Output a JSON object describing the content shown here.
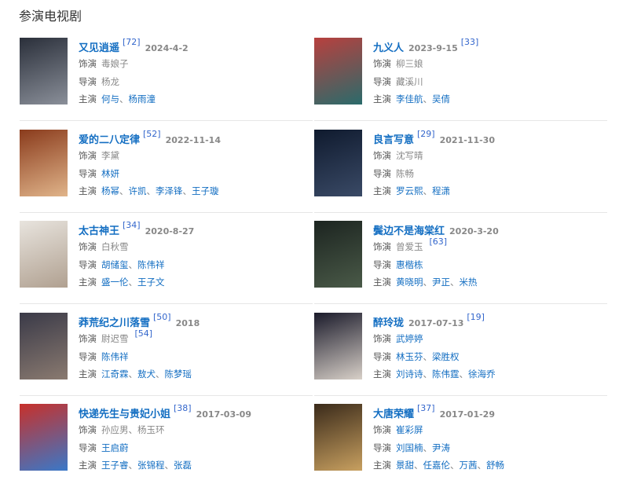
{
  "section_title": "参演电视剧",
  "labels": {
    "role": "饰演",
    "director": "导演",
    "starring": "主演"
  },
  "separator": "、",
  "colors": {
    "link": "#136ec2",
    "ref": "#3366cc",
    "date": "#888888"
  },
  "items": [
    {
      "title": "又见逍遥",
      "ref": "[72]",
      "date": "2024-4-2",
      "date_first": false,
      "role": [
        {
          "name": "毒娘子",
          "link": false
        }
      ],
      "role_ref": "",
      "director": [
        {
          "name": "杨龙",
          "link": false
        }
      ],
      "starring": [
        {
          "name": "何与",
          "link": true
        },
        {
          "name": "杨雨潼",
          "link": true
        }
      ],
      "poster": [
        "#2a2f3a",
        "#8a8f99"
      ]
    },
    {
      "title": "九义人",
      "ref": "[33]",
      "date": "2023-9-15",
      "date_first": true,
      "role": [
        {
          "name": "柳三娘",
          "link": false
        }
      ],
      "role_ref": "",
      "director": [
        {
          "name": "藏溪川",
          "link": false
        }
      ],
      "starring": [
        {
          "name": "李佳航",
          "link": true
        },
        {
          "name": "吴倩",
          "link": true
        }
      ],
      "poster": [
        "#b8403e",
        "#2a6b6b"
      ]
    },
    {
      "title": "爱的二八定律",
      "ref": "[52]",
      "date": "2022-11-14",
      "date_first": false,
      "role": [
        {
          "name": "李黛",
          "link": false
        }
      ],
      "role_ref": "",
      "director": [
        {
          "name": "林妍",
          "link": true
        }
      ],
      "starring": [
        {
          "name": "杨幂",
          "link": true
        },
        {
          "name": "许凯",
          "link": true
        },
        {
          "name": "李泽锋",
          "link": true
        },
        {
          "name": "王子璇",
          "link": true
        }
      ],
      "poster": [
        "#8a3b1c",
        "#e0b48a"
      ]
    },
    {
      "title": "良言写意",
      "ref": "[29]",
      "date": "2021-11-30",
      "date_first": false,
      "role": [
        {
          "name": "沈写晴",
          "link": false
        }
      ],
      "role_ref": "",
      "director": [
        {
          "name": "陈畅",
          "link": false
        }
      ],
      "starring": [
        {
          "name": "罗云熙",
          "link": true
        },
        {
          "name": "程潇",
          "link": true
        }
      ],
      "poster": [
        "#0f1a2e",
        "#3a4a66"
      ]
    },
    {
      "title": "太古神王",
      "ref": "[34]",
      "date": "2020-8-27",
      "date_first": false,
      "role": [
        {
          "name": "白秋雪",
          "link": false
        }
      ],
      "role_ref": "",
      "director": [
        {
          "name": "胡储玺",
          "link": true
        },
        {
          "name": "陈伟祥",
          "link": true
        }
      ],
      "starring": [
        {
          "name": "盛一伦",
          "link": true
        },
        {
          "name": "王子文",
          "link": true
        }
      ],
      "poster": [
        "#e8e4de",
        "#b0a090"
      ]
    },
    {
      "title": "鬓边不是海棠红",
      "ref": "",
      "date": "2020-3-20",
      "date_first": true,
      "role": [
        {
          "name": "曾爱玉",
          "link": false
        }
      ],
      "role_ref": "[63]",
      "director": [
        {
          "name": "惠楷栋",
          "link": true
        }
      ],
      "starring": [
        {
          "name": "黄晓明",
          "link": true
        },
        {
          "name": "尹正",
          "link": true
        },
        {
          "name": "米热",
          "link": true
        }
      ],
      "poster": [
        "#1c2420",
        "#4a5a48"
      ]
    },
    {
      "title": "莽荒纪之川落雪",
      "ref": "[50]",
      "date": "2018",
      "date_first": false,
      "role": [
        {
          "name": "尉迟雪",
          "link": false
        }
      ],
      "role_ref": "[54]",
      "director": [
        {
          "name": "陈伟祥",
          "link": true
        }
      ],
      "starring": [
        {
          "name": "江奇霖",
          "link": true
        },
        {
          "name": "敖犬",
          "link": true
        },
        {
          "name": "陈梦瑶",
          "link": true
        }
      ],
      "poster": [
        "#3a3a48",
        "#8a7a70"
      ]
    },
    {
      "title": "醉玲珑",
      "ref": "[19]",
      "date": "2017-07-13",
      "date_first": true,
      "role": [
        {
          "name": "武婷婷",
          "link": true
        }
      ],
      "role_ref": "",
      "director": [
        {
          "name": "林玉芬",
          "link": true
        },
        {
          "name": "梁胜权",
          "link": true
        }
      ],
      "starring": [
        {
          "name": "刘诗诗",
          "link": true
        },
        {
          "name": "陈伟霆",
          "link": true
        },
        {
          "name": "徐海乔",
          "link": true
        }
      ],
      "poster": [
        "#1a1a2a",
        "#d8d0c8"
      ]
    },
    {
      "title": "快递先生与贵妃小姐",
      "ref": "[38]",
      "date": "2017-03-09",
      "date_first": false,
      "role": [
        {
          "name": "孙应男",
          "link": false
        },
        {
          "name": "杨玉环",
          "link": false
        }
      ],
      "role_ref": "",
      "director": [
        {
          "name": "王启蔚",
          "link": true
        }
      ],
      "starring": [
        {
          "name": "王子睿",
          "link": true
        },
        {
          "name": "张锦程",
          "link": true
        },
        {
          "name": "张磊",
          "link": true
        }
      ],
      "poster": [
        "#c8302a",
        "#3a78c8"
      ]
    },
    {
      "title": "大唐荣耀",
      "ref": "[37]",
      "date": "2017-01-29",
      "date_first": false,
      "role": [
        {
          "name": "崔彩屏",
          "link": true
        }
      ],
      "role_ref": "",
      "director": [
        {
          "name": "刘国楠",
          "link": true
        },
        {
          "name": "尹涛",
          "link": true
        }
      ],
      "starring": [
        {
          "name": "景甜",
          "link": true
        },
        {
          "name": "任嘉伦",
          "link": true
        },
        {
          "name": "万茜",
          "link": true
        },
        {
          "name": "舒畅",
          "link": true
        }
      ],
      "poster": [
        "#3a2a1a",
        "#c8a060"
      ]
    }
  ]
}
